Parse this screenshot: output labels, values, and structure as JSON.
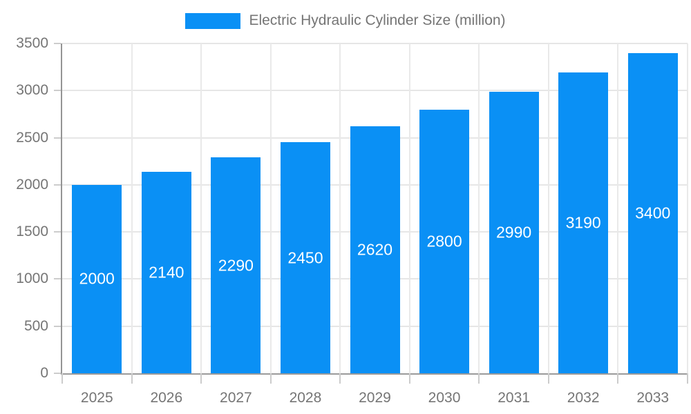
{
  "legend": {
    "label": "Electric Hydraulic Cylinder Size (million)"
  },
  "chart_data": {
    "type": "bar",
    "title": "Electric Hydraulic Cylinder Size (million)",
    "categories": [
      "2025",
      "2026",
      "2027",
      "2028",
      "2029",
      "2030",
      "2031",
      "2032",
      "2033"
    ],
    "values": [
      2000,
      2140,
      2290,
      2450,
      2620,
      2800,
      2990,
      3190,
      3400
    ],
    "xlabel": "",
    "ylabel": "",
    "ylim": [
      0,
      3500
    ],
    "ytick_step": 500,
    "grid": true,
    "legend_position": "top",
    "bar_color": "#0a90f5",
    "bar_label_color": "#ffffff",
    "axis_text_color": "#757575"
  }
}
